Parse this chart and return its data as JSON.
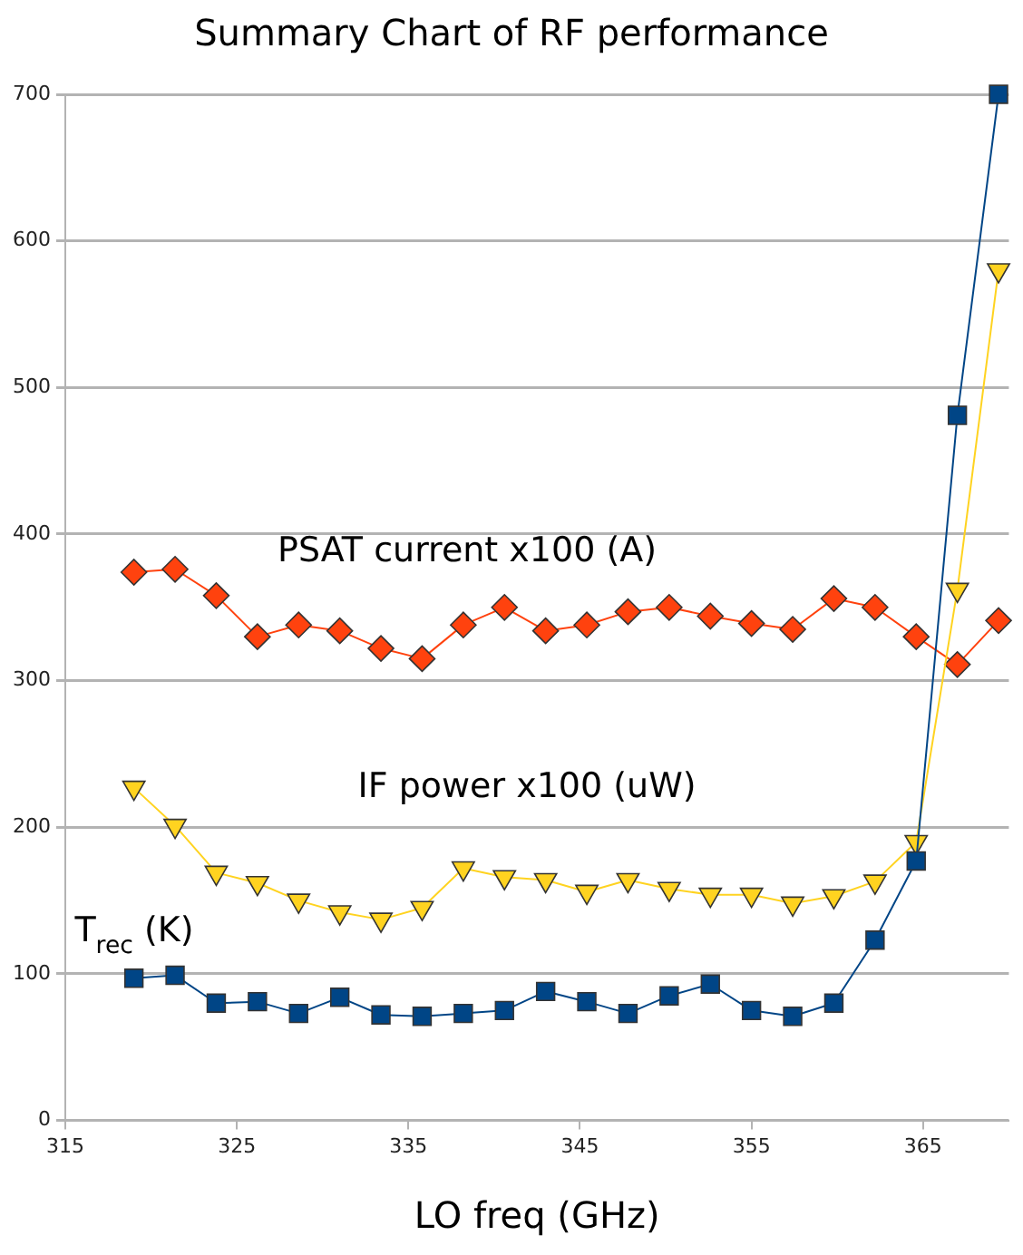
{
  "chart_data": {
    "type": "line",
    "title": "Summary Chart of RF performance",
    "xlabel": "LO freq (GHz)",
    "x": [
      319,
      321.4,
      323.8,
      326.2,
      328.6,
      331,
      333.4,
      335.8,
      338.2,
      340.6,
      343,
      345.4,
      347.8,
      350.2,
      352.6,
      355,
      357.4,
      359.8,
      362.2,
      364.6,
      367,
      369.4
    ],
    "series": [
      {
        "name": "T$_{rec}$ (K)",
        "color": "#004586",
        "marker": "square",
        "values": [
          97,
          99,
          80,
          81,
          73,
          84,
          72,
          71,
          73,
          75,
          88,
          81,
          73,
          85,
          93,
          75,
          71,
          80,
          123,
          177,
          481,
          700
        ]
      },
      {
        "name": "IF power x100 (uW)",
        "color": "#ffd320",
        "marker": "triangle",
        "values": [
          227,
          201,
          169,
          162,
          150,
          142,
          137,
          145,
          172,
          166,
          164,
          156,
          164,
          158,
          154,
          154,
          148,
          153,
          163,
          190,
          362,
          580
        ]
      },
      {
        "name": "PSAT current x100 (A)",
        "color": "#ff420e",
        "marker": "diamond",
        "values": [
          374,
          376,
          358,
          330,
          338,
          334,
          322,
          315,
          338,
          350,
          334,
          338,
          347,
          350,
          344,
          339,
          335,
          356,
          350,
          330,
          311,
          341
        ]
      }
    ],
    "xlim": [
      315,
      370
    ],
    "xticks": [
      315,
      325,
      335,
      345,
      355,
      365
    ],
    "ylim": [
      0,
      700
    ],
    "yticks": [
      0,
      100,
      200,
      300,
      400,
      500,
      600,
      700
    ],
    "grid": "y",
    "legend": false,
    "line_style": "solid"
  }
}
